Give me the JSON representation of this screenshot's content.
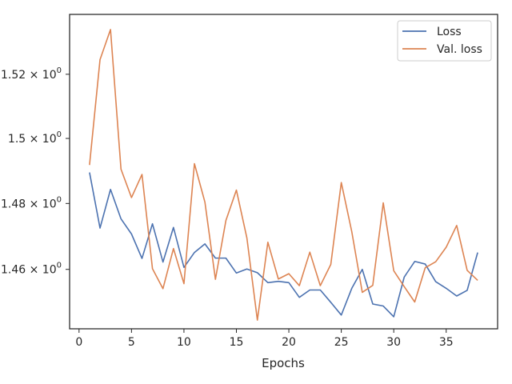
{
  "chart_data": {
    "type": "line",
    "title": "",
    "xlabel": "Epochs",
    "ylabel": "",
    "xlim": [
      -0.9,
      39.9
    ],
    "ylim": [
      1.4422,
      1.5389
    ],
    "y_scale": "log",
    "x_ticks": [
      0,
      5,
      10,
      15,
      20,
      25,
      30,
      35
    ],
    "x_tick_labels": [
      "0",
      "5",
      "10",
      "15",
      "20",
      "25",
      "30",
      "35"
    ],
    "y_ticks": [
      1.46,
      1.48,
      1.5,
      1.52
    ],
    "y_tick_labels": [
      "1.46 × 10^0",
      "1.48 × 10^0",
      "1.5 × 10^0",
      "1.52 × 10^0"
    ],
    "grid": false,
    "legend_position": "top-right",
    "x": [
      1,
      2,
      3,
      4,
      5,
      6,
      7,
      8,
      9,
      10,
      11,
      12,
      13,
      14,
      15,
      16,
      17,
      18,
      19,
      20,
      21,
      22,
      23,
      24,
      25,
      26,
      27,
      28,
      29,
      30,
      31,
      32,
      33,
      34,
      35,
      36,
      37,
      38
    ],
    "series": [
      {
        "name": "Loss",
        "color": "#4c72b0",
        "values": [
          1.4895,
          1.4725,
          1.4843,
          1.4753,
          1.4707,
          1.4633,
          1.4738,
          1.4622,
          1.4727,
          1.4606,
          1.4651,
          1.4677,
          1.4634,
          1.4634,
          1.4589,
          1.4601,
          1.459,
          1.456,
          1.4564,
          1.456,
          1.4516,
          1.4538,
          1.4538,
          1.4501,
          1.4463,
          1.4543,
          1.46,
          1.4496,
          1.449,
          1.4458,
          1.4577,
          1.4624,
          1.4616,
          1.4563,
          1.4543,
          1.452,
          1.4537,
          1.4651
        ]
      },
      {
        "name": "Val. loss",
        "color": "#dd8452",
        "values": [
          1.4918,
          1.5246,
          1.5341,
          1.4905,
          1.4818,
          1.4889,
          1.4602,
          1.4542,
          1.4663,
          1.4557,
          1.4922,
          1.4804,
          1.457,
          1.4748,
          1.4841,
          1.4695,
          1.4448,
          1.4682,
          1.4571,
          1.4587,
          1.4551,
          1.4652,
          1.4551,
          1.4615,
          1.4864,
          1.4714,
          1.4531,
          1.4552,
          1.4802,
          1.4596,
          1.4548,
          1.4502,
          1.4605,
          1.4623,
          1.4667,
          1.4733,
          1.4597,
          1.4567
        ]
      }
    ]
  }
}
